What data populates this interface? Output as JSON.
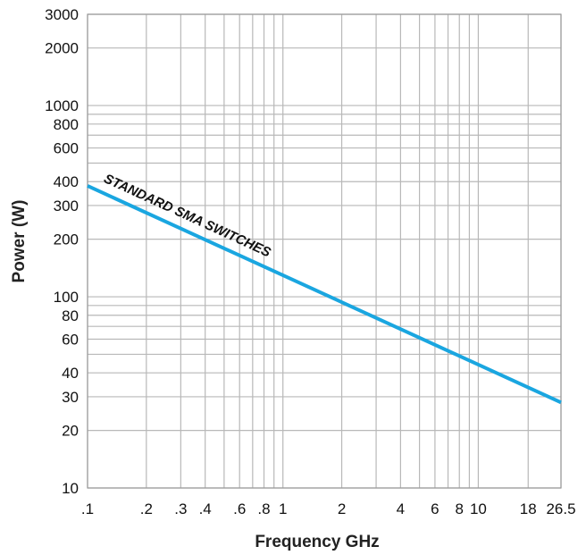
{
  "chart_data": {
    "type": "line",
    "xscale": "log",
    "yscale": "log",
    "xlim": [
      0.1,
      26.5
    ],
    "ylim": [
      10,
      3000
    ],
    "xlabel": "Frequency GHz",
    "ylabel": "Power (W)",
    "x_ticks": [
      {
        "value": 0.1,
        "label": ".1"
      },
      {
        "value": 0.2,
        "label": ".2"
      },
      {
        "value": 0.3,
        "label": ".3"
      },
      {
        "value": 0.4,
        "label": ".4"
      },
      {
        "value": 0.6,
        "label": ".6"
      },
      {
        "value": 0.8,
        "label": ".8"
      },
      {
        "value": 1,
        "label": "1"
      },
      {
        "value": 2,
        "label": "2"
      },
      {
        "value": 4,
        "label": "4"
      },
      {
        "value": 6,
        "label": "6"
      },
      {
        "value": 8,
        "label": "8"
      },
      {
        "value": 10,
        "label": "10"
      },
      {
        "value": 18,
        "label": "18"
      },
      {
        "value": 26.5,
        "label": "26.5"
      }
    ],
    "y_ticks": [
      {
        "value": 10,
        "label": "10"
      },
      {
        "value": 20,
        "label": "20"
      },
      {
        "value": 30,
        "label": "30"
      },
      {
        "value": 40,
        "label": "40"
      },
      {
        "value": 60,
        "label": "60"
      },
      {
        "value": 80,
        "label": "80"
      },
      {
        "value": 100,
        "label": "100"
      },
      {
        "value": 200,
        "label": "200"
      },
      {
        "value": 300,
        "label": "300"
      },
      {
        "value": 400,
        "label": "400"
      },
      {
        "value": 600,
        "label": "600"
      },
      {
        "value": 800,
        "label": "800"
      },
      {
        "value": 1000,
        "label": "1000"
      },
      {
        "value": 2000,
        "label": "2000"
      },
      {
        "value": 3000,
        "label": "3000"
      }
    ],
    "x_gridlines": [
      0.1,
      0.2,
      0.3,
      0.4,
      0.5,
      0.6,
      0.7,
      0.8,
      0.9,
      1,
      2,
      3,
      4,
      5,
      6,
      7,
      8,
      9,
      10,
      18,
      26.5
    ],
    "y_gridlines": [
      10,
      20,
      30,
      40,
      50,
      60,
      70,
      80,
      90,
      100,
      200,
      300,
      400,
      500,
      600,
      700,
      800,
      900,
      1000,
      2000,
      3000
    ],
    "grid": true,
    "series": [
      {
        "name": "",
        "color": "#1aa6e0",
        "points": [
          {
            "x": 0.1,
            "y": 380
          },
          {
            "x": 26.5,
            "y": 28
          }
        ]
      }
    ],
    "annotations": [
      {
        "text": "STANDARD SMA SWITCHES",
        "x": 0.12,
        "y": 400
      }
    ]
  }
}
